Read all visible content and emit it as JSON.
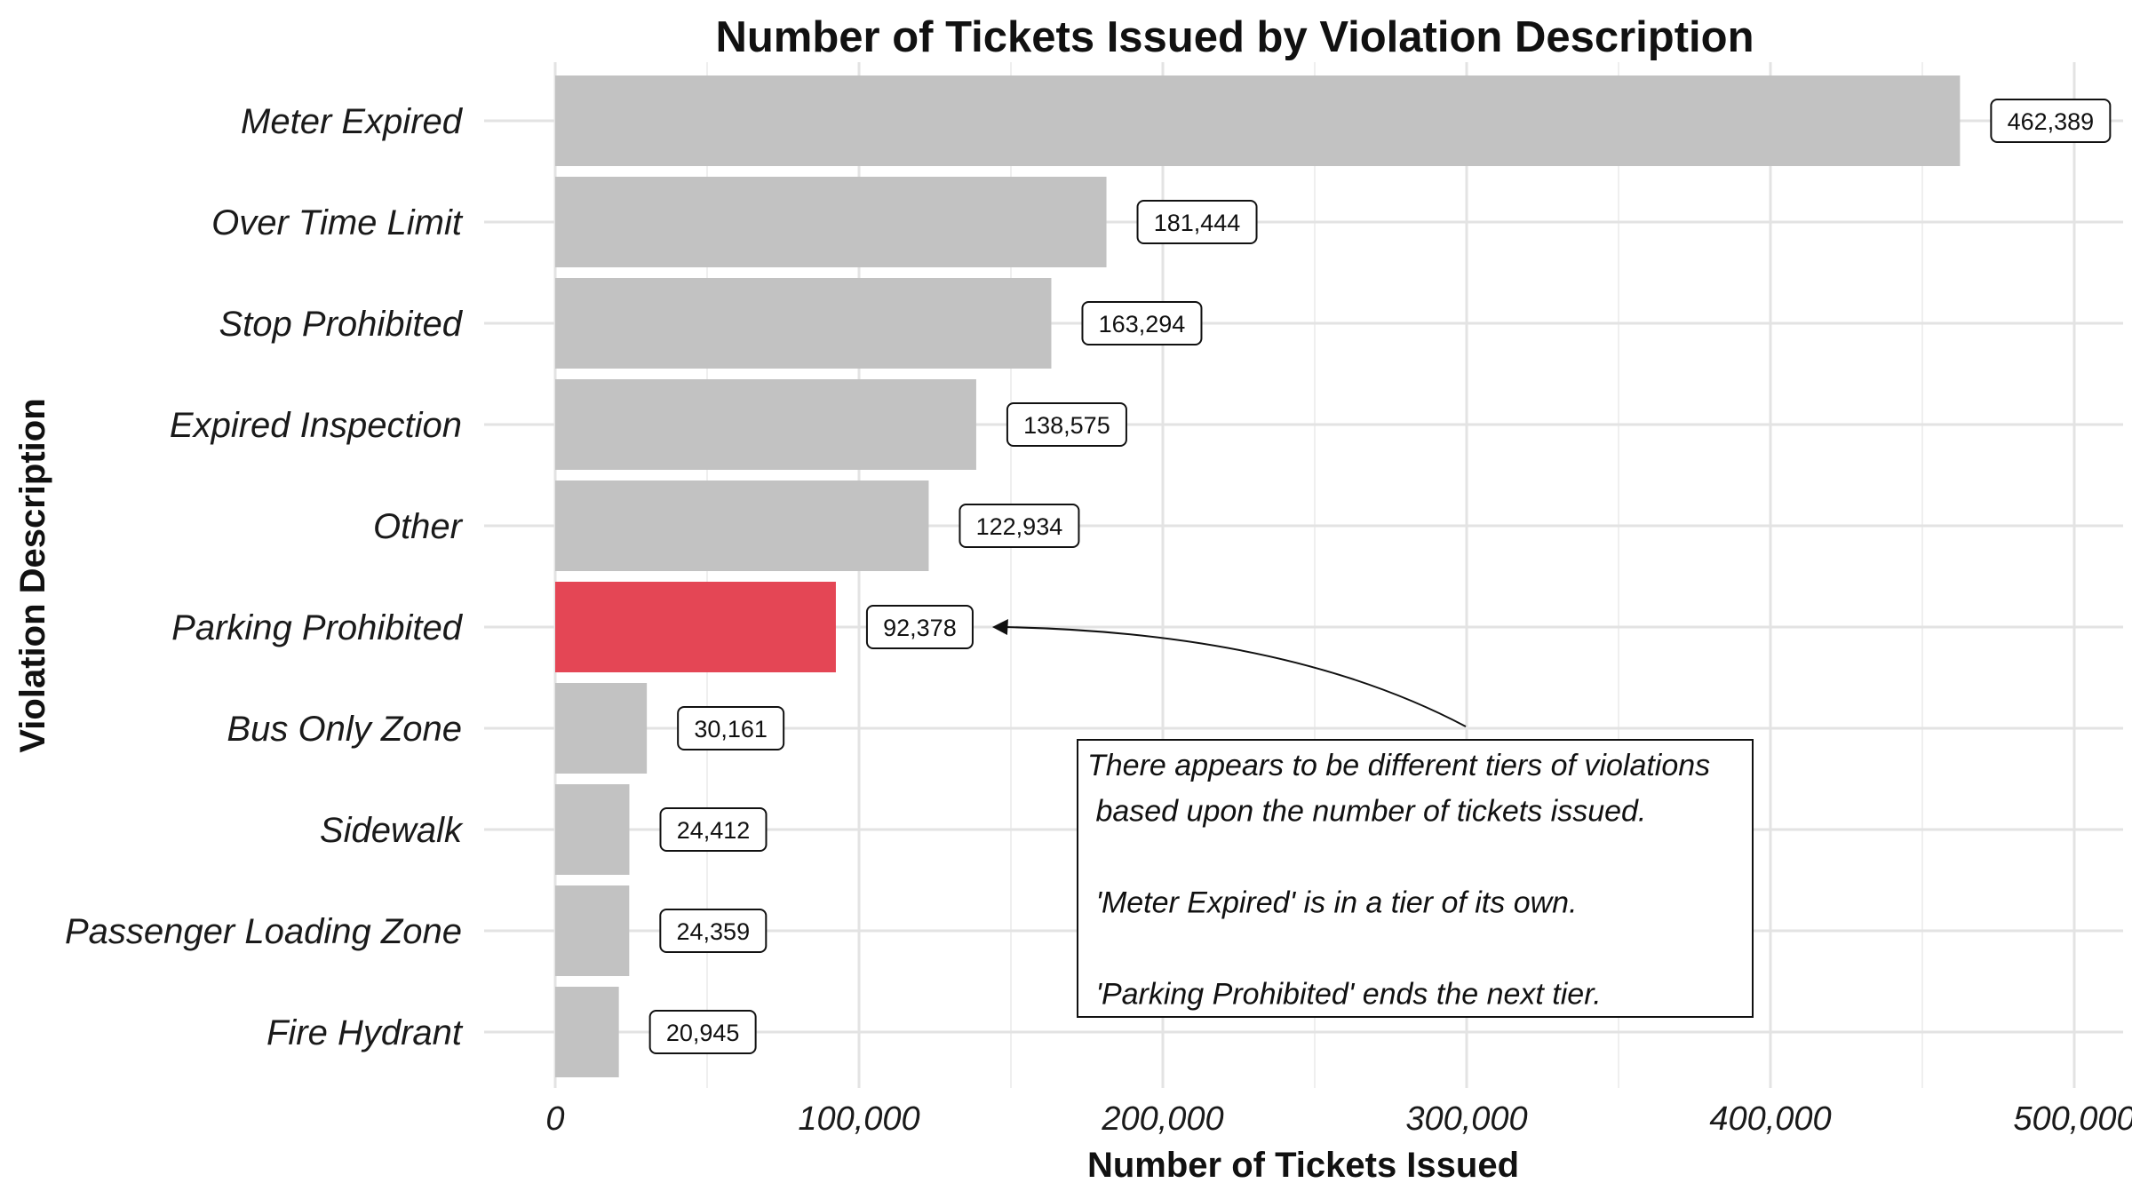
{
  "chart_data": {
    "type": "bar",
    "orientation": "horizontal",
    "title": "Number of Tickets Issued by Violation Description",
    "xlabel": "Number of Tickets Issued",
    "ylabel": "Violation Description",
    "categories": [
      "Meter Expired",
      "Over Time Limit",
      "Stop Prohibited",
      "Expired Inspection",
      "Other",
      "Parking Prohibited",
      "Bus Only Zone",
      "Sidewalk",
      "Passenger Loading Zone",
      "Fire Hydrant"
    ],
    "values": [
      462389,
      181444,
      163294,
      138575,
      122934,
      92378,
      30161,
      24412,
      24359,
      20945
    ],
    "data_labels": [
      "462,389",
      "181,444",
      "163,294",
      "138,575",
      "122,934",
      "92,378",
      "30,161",
      "24,412",
      "24,359",
      "20,945"
    ],
    "highlighted_category": "Parking Prohibited",
    "xlim": [
      0,
      500000
    ],
    "x_ticks": [
      0,
      100000,
      200000,
      300000,
      400000,
      500000
    ],
    "x_tick_labels": [
      "0",
      "100,000",
      "200,000",
      "300,000",
      "400,000",
      "500,000"
    ],
    "grid": true,
    "legend": "none",
    "annotation": {
      "lines": [
        "There appears to be different tiers of violations",
        " based upon the number of tickets issued.",
        "",
        " 'Meter Expired' is in a tier of its own.",
        "",
        " 'Parking Prohibited' ends the next tier."
      ],
      "points_to": "Parking Prohibited"
    }
  },
  "colors": {
    "bar_default": "#c2c2c2",
    "bar_highlight": "#e44655",
    "grid_major": "#e3e3e3",
    "grid_minor": "#efefef",
    "text": "#1a1a1a"
  }
}
